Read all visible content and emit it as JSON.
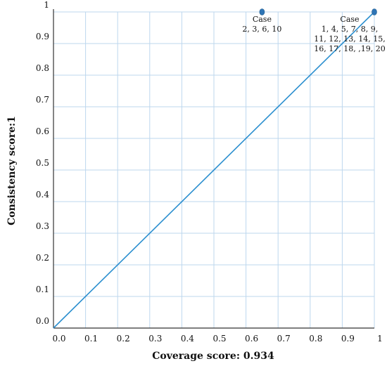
{
  "chart_data": {
    "type": "scatter",
    "title": "",
    "xlabel": "Coverage score: 0.934",
    "ylabel": "Consistency score:1",
    "xlim": [
      0,
      1
    ],
    "ylim": [
      0,
      1
    ],
    "grid": true,
    "colors": {
      "line": "#2b8fcf",
      "point": "#2e75b6",
      "grid": "#bdd7ee",
      "axis": "#333333"
    },
    "x_ticks": [
      "0.0",
      "0.1",
      "0.2",
      "0.3",
      "0.4",
      "0.5",
      "0.6",
      "0.7",
      "0.8",
      "0.9",
      "1"
    ],
    "y_ticks": [
      "0.0",
      "0.1",
      "0.2",
      "0.3",
      "0.4",
      "0.5",
      "0.6",
      "0.7",
      "0.8",
      "0.9",
      "1"
    ],
    "diagonal": {
      "x": [
        0,
        1
      ],
      "y": [
        0,
        1
      ]
    },
    "points": [
      {
        "x": 0.65,
        "y": 1,
        "label_lines": [
          "Case",
          "2, 3, 6, 10"
        ]
      },
      {
        "x": 1,
        "y": 1,
        "label_lines": [
          "Case",
          "1, 4, 5, 7, 8, 9,",
          "11, 12, 13, 14, 15,",
          "16, 17, 18, ,19, 20"
        ]
      }
    ]
  }
}
